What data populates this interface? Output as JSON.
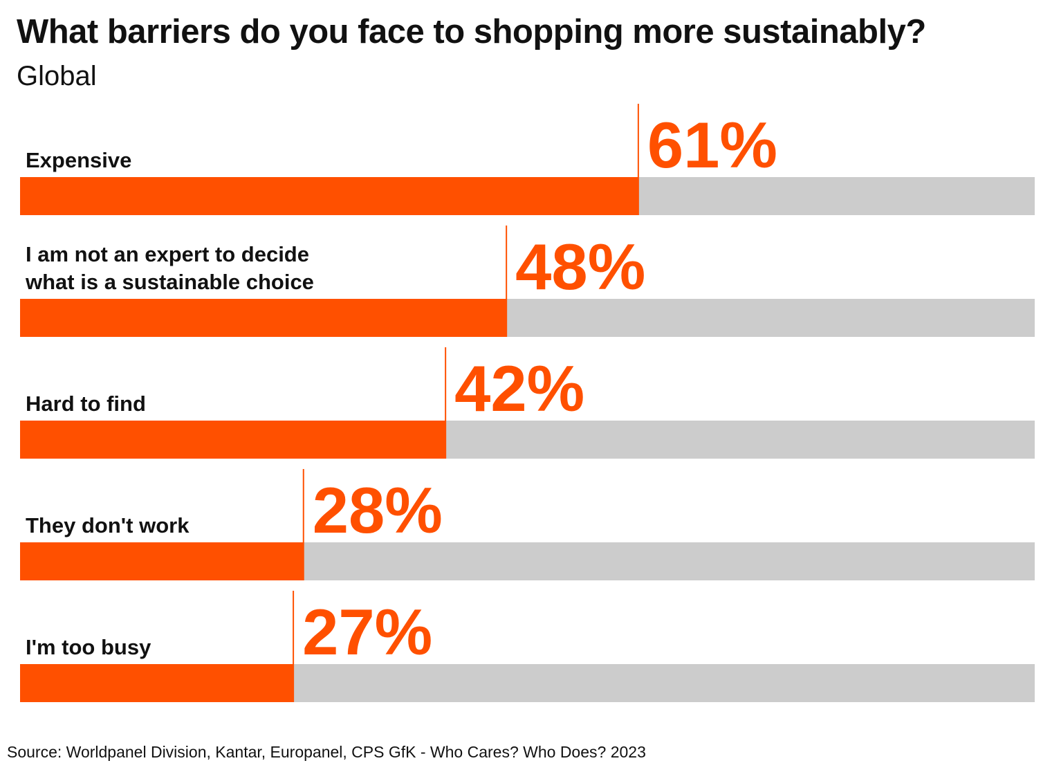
{
  "header": {
    "title": "What barriers do you face to shopping more sustainably?",
    "subtitle": "Global"
  },
  "footer": {
    "source": "Source: Worldpanel Division, Kantar, Europanel, CPS GfK - Who Cares? Who Does? 2023"
  },
  "colors": {
    "bar": "#FF5000",
    "track": "#CCCCCC",
    "label_text": "#111111",
    "value_text": "#FF5000"
  },
  "chart_data": {
    "type": "bar",
    "orientation": "horizontal",
    "title": "What barriers do you face to shopping more sustainably?",
    "subtitle": "Global",
    "categories": [
      [
        "Expensive"
      ],
      [
        "I am not an expert to decide",
        "what is a sustainable choice"
      ],
      [
        "Hard to find"
      ],
      [
        "They don't work"
      ],
      [
        "I'm too busy"
      ]
    ],
    "values": [
      61,
      48,
      42,
      28,
      27
    ],
    "data_labels": [
      "61%",
      "48%",
      "42%",
      "28%",
      "27%"
    ],
    "value_unit": "%",
    "xlim": [
      0,
      100
    ],
    "grid": false,
    "legend": "none"
  }
}
